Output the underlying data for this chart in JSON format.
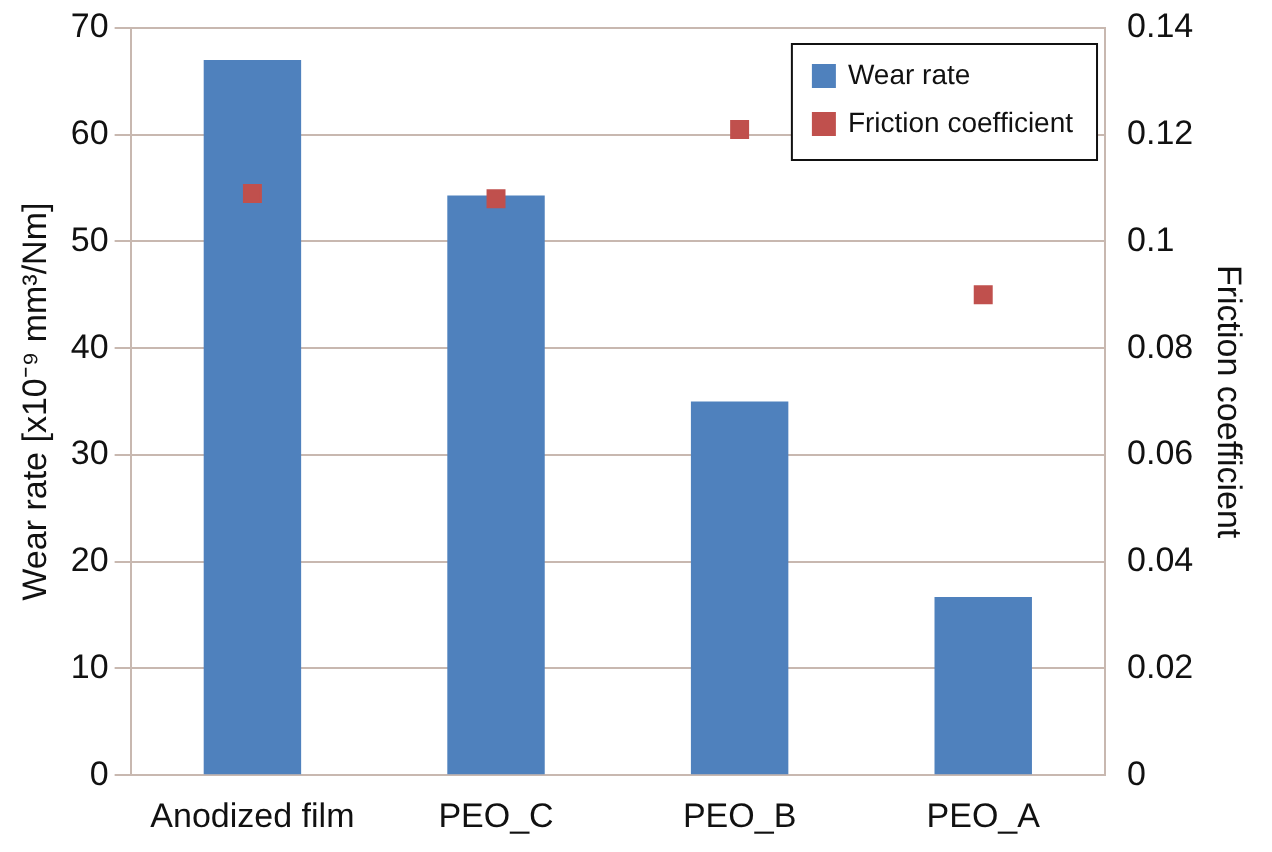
{
  "chart_data": {
    "type": "bar",
    "ylabel": "Wear rate [x10⁻⁹ mm³/Nm]",
    "y2label": "Friction coefficient",
    "categories": [
      "Anodized film",
      "PEO_C",
      "PEO_B",
      "PEO_A"
    ],
    "series": [
      {
        "name": "Wear rate",
        "color": "#4f81bd",
        "values": [
          67,
          54.3,
          35,
          16.7
        ]
      },
      {
        "name": "Friction coefficient",
        "type": "scatter",
        "axis": "y2",
        "marker": "square",
        "color": "#c0504d",
        "values": [
          0.109,
          0.108,
          0.121,
          0.09
        ]
      }
    ],
    "ylim": [
      0,
      70
    ],
    "yticks": [
      0,
      10,
      20,
      30,
      40,
      50,
      60,
      70
    ],
    "y2lim": [
      0,
      0.14
    ],
    "y2ticks": [
      0,
      0.02,
      0.04,
      0.06,
      0.08,
      0.1,
      0.12,
      0.14
    ],
    "grid": "y",
    "legend": "top right"
  }
}
